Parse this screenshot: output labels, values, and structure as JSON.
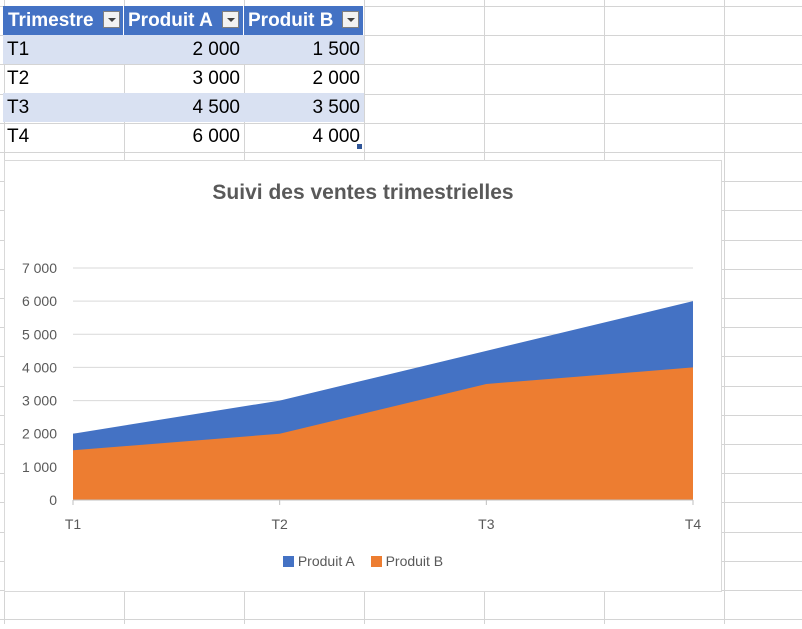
{
  "table": {
    "headers": [
      "Trimestre",
      "Produit A",
      "Produit B"
    ],
    "rows": [
      {
        "trimestre": "T1",
        "a": "2 000",
        "b": "1 500"
      },
      {
        "trimestre": "T2",
        "a": "3 000",
        "b": "2 000"
      },
      {
        "trimestre": "T3",
        "a": "4 500",
        "b": "3 500"
      },
      {
        "trimestre": "T4",
        "a": "6 000",
        "b": "4 000"
      }
    ]
  },
  "colors": {
    "header": "#4472c4",
    "band": "#d9e1f2",
    "series_a": "#4472c4",
    "series_b": "#ed7d31"
  },
  "chart_data": {
    "type": "area",
    "stacked": false,
    "title": "Suivi des ventes trimestrielles",
    "categories": [
      "T1",
      "T2",
      "T3",
      "T4"
    ],
    "series": [
      {
        "name": "Produit A",
        "values": [
          2000,
          3000,
          4500,
          6000
        ]
      },
      {
        "name": "Produit B",
        "values": [
          1500,
          2000,
          3500,
          4000
        ]
      }
    ],
    "ylim": [
      0,
      7000
    ],
    "ytick_labels": [
      "0",
      "1 000",
      "2 000",
      "3 000",
      "4 000",
      "5 000",
      "6 000",
      "7 000"
    ],
    "grid": true,
    "legend_position": "bottom"
  }
}
